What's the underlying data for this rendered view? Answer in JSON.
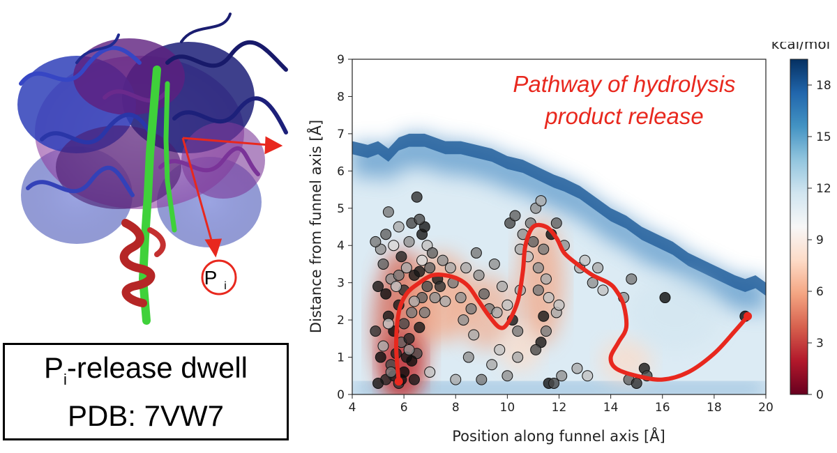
{
  "structure_panel": {
    "pi_label": "P",
    "pi_subscript": "i"
  },
  "info_box": {
    "line1_prefix": "P",
    "line1_subscript": "i",
    "line1_suffix": "-release dwell",
    "line2": "PDB: 7VW7"
  },
  "colors": {
    "accent_red": "#e8281e",
    "protein_blue": "#2f3fb8",
    "protein_navy": "#1c1f78",
    "protein_purple": "#5e1f7e",
    "helix_green": "#3fd13a",
    "helix_red": "#b52626"
  },
  "chart_data": {
    "type": "scatter",
    "subtype": "free-energy heatmap with scatter points and pathway overlay",
    "xlabel": "Position along funnel axis [Å]",
    "ylabel": "Distance from funnel axis [Å]",
    "xlim": [
      4,
      20
    ],
    "ylim": [
      0,
      9
    ],
    "xticks": [
      4,
      6,
      8,
      10,
      12,
      14,
      16,
      18,
      20
    ],
    "yticks": [
      0,
      1,
      2,
      3,
      4,
      5,
      6,
      7,
      8,
      9
    ],
    "annotation": [
      "Pathway of hydrolysis",
      "product release"
    ],
    "colorbar": {
      "label": "kcal/mol",
      "ticks": [
        0,
        3,
        6,
        9,
        12,
        15,
        18
      ],
      "range": [
        0,
        19.5
      ],
      "colormap": "RdBu"
    },
    "boundary": [
      [
        4.0,
        6.8
      ],
      [
        4.6,
        6.7
      ],
      [
        5.0,
        6.8
      ],
      [
        5.4,
        6.6
      ],
      [
        5.8,
        6.9
      ],
      [
        6.2,
        7.0
      ],
      [
        6.8,
        7.0
      ],
      [
        7.2,
        6.9
      ],
      [
        7.6,
        6.8
      ],
      [
        8.2,
        6.8
      ],
      [
        8.8,
        6.7
      ],
      [
        9.4,
        6.6
      ],
      [
        10.0,
        6.4
      ],
      [
        10.6,
        6.3
      ],
      [
        11.2,
        6.1
      ],
      [
        11.8,
        5.9
      ],
      [
        12.2,
        5.8
      ],
      [
        12.8,
        5.6
      ],
      [
        13.4,
        5.3
      ],
      [
        14.0,
        5.0
      ],
      [
        14.6,
        4.8
      ],
      [
        15.2,
        4.5
      ],
      [
        15.8,
        4.3
      ],
      [
        16.4,
        4.1
      ],
      [
        17.0,
        3.8
      ],
      [
        17.6,
        3.6
      ],
      [
        18.2,
        3.4
      ],
      [
        18.8,
        3.2
      ],
      [
        19.2,
        3.1
      ],
      [
        19.6,
        3.2
      ],
      [
        20.0,
        3.0
      ]
    ],
    "pathway": [
      [
        5.8,
        0.35
      ],
      [
        5.7,
        1.3
      ],
      [
        5.8,
        2.2
      ],
      [
        6.1,
        2.7
      ],
      [
        6.6,
        3.0
      ],
      [
        7.1,
        3.2
      ],
      [
        7.6,
        3.2
      ],
      [
        8.1,
        3.1
      ],
      [
        8.5,
        2.9
      ],
      [
        8.9,
        2.5
      ],
      [
        9.3,
        2.1
      ],
      [
        9.7,
        1.8
      ],
      [
        10.0,
        1.9
      ],
      [
        10.4,
        2.5
      ],
      [
        10.6,
        3.3
      ],
      [
        10.7,
        4.0
      ],
      [
        11.0,
        4.5
      ],
      [
        11.5,
        4.5
      ],
      [
        11.9,
        4.2
      ],
      [
        12.2,
        3.8
      ],
      [
        12.7,
        3.5
      ],
      [
        13.3,
        3.2
      ],
      [
        13.9,
        3.0
      ],
      [
        14.2,
        2.8
      ],
      [
        14.5,
        2.4
      ],
      [
        14.6,
        1.8
      ],
      [
        14.3,
        1.4
      ],
      [
        14.0,
        1.0
      ],
      [
        14.2,
        0.7
      ],
      [
        15.0,
        0.5
      ],
      [
        16.0,
        0.4
      ],
      [
        17.0,
        0.6
      ],
      [
        18.0,
        1.1
      ],
      [
        18.8,
        1.7
      ],
      [
        19.3,
        2.1
      ]
    ],
    "points": [
      [
        5.6,
        0.5,
        0.9
      ],
      [
        5.8,
        0.3,
        0.8
      ],
      [
        6.0,
        0.6,
        0.95
      ],
      [
        5.5,
        0.8,
        0.7
      ],
      [
        5.7,
        1.1,
        0.85
      ],
      [
        6.1,
        1.0,
        0.9
      ],
      [
        5.9,
        1.4,
        0.6
      ],
      [
        6.2,
        1.5,
        0.85
      ],
      [
        5.6,
        1.7,
        0.95
      ],
      [
        6.0,
        1.9,
        0.7
      ],
      [
        5.4,
        2.1,
        0.9
      ],
      [
        6.3,
        2.2,
        0.5
      ],
      [
        5.8,
        2.4,
        0.9
      ],
      [
        5.3,
        2.7,
        0.95
      ],
      [
        6.0,
        2.8,
        0.8
      ],
      [
        5.5,
        3.1,
        0.4
      ],
      [
        6.4,
        3.2,
        0.9
      ],
      [
        5.2,
        3.5,
        0.6
      ],
      [
        5.9,
        3.7,
        0.85
      ],
      [
        5.0,
        2.9,
        0.9
      ],
      [
        4.9,
        1.7,
        0.8
      ],
      [
        5.1,
        1.0,
        0.95
      ],
      [
        5.3,
        0.4,
        0.85
      ],
      [
        6.4,
        0.4,
        0.9
      ],
      [
        6.5,
        1.1,
        0.7
      ],
      [
        6.6,
        1.8,
        0.9
      ],
      [
        6.7,
        2.6,
        0.6
      ],
      [
        6.3,
        0.9,
        0.95
      ],
      [
        5.0,
        0.3,
        0.9
      ],
      [
        5.9,
        0.4,
        0.95
      ],
      [
        5.5,
        0.6,
        0.5
      ],
      [
        5.2,
        1.3,
        0.3
      ],
      [
        6.2,
        1.2,
        0.4
      ],
      [
        5.4,
        1.9,
        0.2
      ],
      [
        6.4,
        2.5,
        0.3
      ],
      [
        5.7,
        2.9,
        0.2
      ],
      [
        6.1,
        3.4,
        0.3
      ],
      [
        5.1,
        3.9,
        0.4
      ],
      [
        5.6,
        4.0,
        0.1
      ],
      [
        4.9,
        4.1,
        0.5
      ],
      [
        5.3,
        4.3,
        0.6
      ],
      [
        5.8,
        4.5,
        0.3
      ],
      [
        5.4,
        4.9,
        0.5
      ],
      [
        6.3,
        4.6,
        0.7
      ],
      [
        6.7,
        4.3,
        0.9
      ],
      [
        6.2,
        4.1,
        0.4
      ],
      [
        5.8,
        3.2,
        0.5
      ],
      [
        6.7,
        3.6,
        0.1
      ],
      [
        6.9,
        4.0,
        0.2
      ],
      [
        6.5,
        5.3,
        0.8
      ],
      [
        7.0,
        3.4,
        0.6
      ],
      [
        7.3,
        3.1,
        0.9
      ],
      [
        7.5,
        3.6,
        0.4
      ],
      [
        7.8,
        3.4,
        0.3
      ],
      [
        6.9,
        2.9,
        0.7
      ],
      [
        7.2,
        2.6,
        0.4
      ],
      [
        6.8,
        2.2,
        0.5
      ],
      [
        7.4,
        2.9,
        0.8
      ],
      [
        6.6,
        3.3,
        0.9
      ],
      [
        7.1,
        3.8,
        0.6
      ],
      [
        6.8,
        4.5,
        0.9
      ],
      [
        6.6,
        4.7,
        0.7
      ],
      [
        7.6,
        2.5,
        0.3
      ],
      [
        7.9,
        3.0,
        0.5
      ],
      [
        8.2,
        2.6,
        0.4
      ],
      [
        8.4,
        3.4,
        0.3
      ],
      [
        8.6,
        2.3,
        0.5
      ],
      [
        8.9,
        3.2,
        0.4
      ],
      [
        9.1,
        2.7,
        0.6
      ],
      [
        8.7,
        1.6,
        0.3
      ],
      [
        9.3,
        2.3,
        0.5
      ],
      [
        8.3,
        2.0,
        0.4
      ],
      [
        8.8,
        3.8,
        0.5
      ],
      [
        9.5,
        3.5,
        0.4
      ],
      [
        9.6,
        2.2,
        0.3
      ],
      [
        7.0,
        0.6,
        0.2
      ],
      [
        8.0,
        0.4,
        0.3
      ],
      [
        8.5,
        1.0,
        0.4
      ],
      [
        9.0,
        0.4,
        0.5
      ],
      [
        9.4,
        0.8,
        0.3
      ],
      [
        9.7,
        1.2,
        0.2
      ],
      [
        10.0,
        0.5,
        0.4
      ],
      [
        9.8,
        2.9,
        0.3
      ],
      [
        10.0,
        2.4,
        0.2
      ],
      [
        10.2,
        2.0,
        0.9
      ],
      [
        10.4,
        1.7,
        0.5
      ],
      [
        10.5,
        2.8,
        0.3
      ],
      [
        10.1,
        4.6,
        0.7
      ],
      [
        10.3,
        4.8,
        0.6
      ],
      [
        10.6,
        4.3,
        0.4
      ],
      [
        10.5,
        3.9,
        0.3
      ],
      [
        10.8,
        3.7,
        0.2
      ],
      [
        10.9,
        4.6,
        0.5
      ],
      [
        11.1,
        5.0,
        0.4
      ],
      [
        11.3,
        5.2,
        0.3
      ],
      [
        11.0,
        4.1,
        0.6
      ],
      [
        11.2,
        3.4,
        0.4
      ],
      [
        11.4,
        3.9,
        0.5
      ],
      [
        11.5,
        3.1,
        0.3
      ],
      [
        11.6,
        2.6,
        0.2
      ],
      [
        11.2,
        2.8,
        0.5
      ],
      [
        11.3,
        1.4,
        0.9
      ],
      [
        11.1,
        1.2,
        0.7
      ],
      [
        11.5,
        1.7,
        0.5
      ],
      [
        11.4,
        2.1,
        0.9
      ],
      [
        10.4,
        1.0,
        0.3
      ],
      [
        11.6,
        0.3,
        0.9
      ],
      [
        11.8,
        0.3,
        0.7
      ],
      [
        12.1,
        0.5,
        0.4
      ],
      [
        11.9,
        2.2,
        0.3
      ],
      [
        12.0,
        2.4,
        0.2
      ],
      [
        11.7,
        4.3,
        0.95
      ],
      [
        11.9,
        4.6,
        0.6
      ],
      [
        12.2,
        4.0,
        0.4
      ],
      [
        12.8,
        3.4,
        0.3
      ],
      [
        13.0,
        3.6,
        0.2
      ],
      [
        13.3,
        3.0,
        0.4
      ],
      [
        13.5,
        3.4,
        0.3
      ],
      [
        13.7,
        2.8,
        0.2
      ],
      [
        14.5,
        2.6,
        0.4
      ],
      [
        14.8,
        3.1,
        0.5
      ],
      [
        13.1,
        0.5,
        0.2
      ],
      [
        12.7,
        0.7,
        0.3
      ],
      [
        14.7,
        0.4,
        0.6
      ],
      [
        15.0,
        0.3,
        0.8
      ],
      [
        15.3,
        0.7,
        0.9
      ],
      [
        15.4,
        0.5,
        0.7
      ],
      [
        16.1,
        2.6,
        0.95
      ],
      [
        19.2,
        2.1,
        0.95
      ]
    ]
  }
}
